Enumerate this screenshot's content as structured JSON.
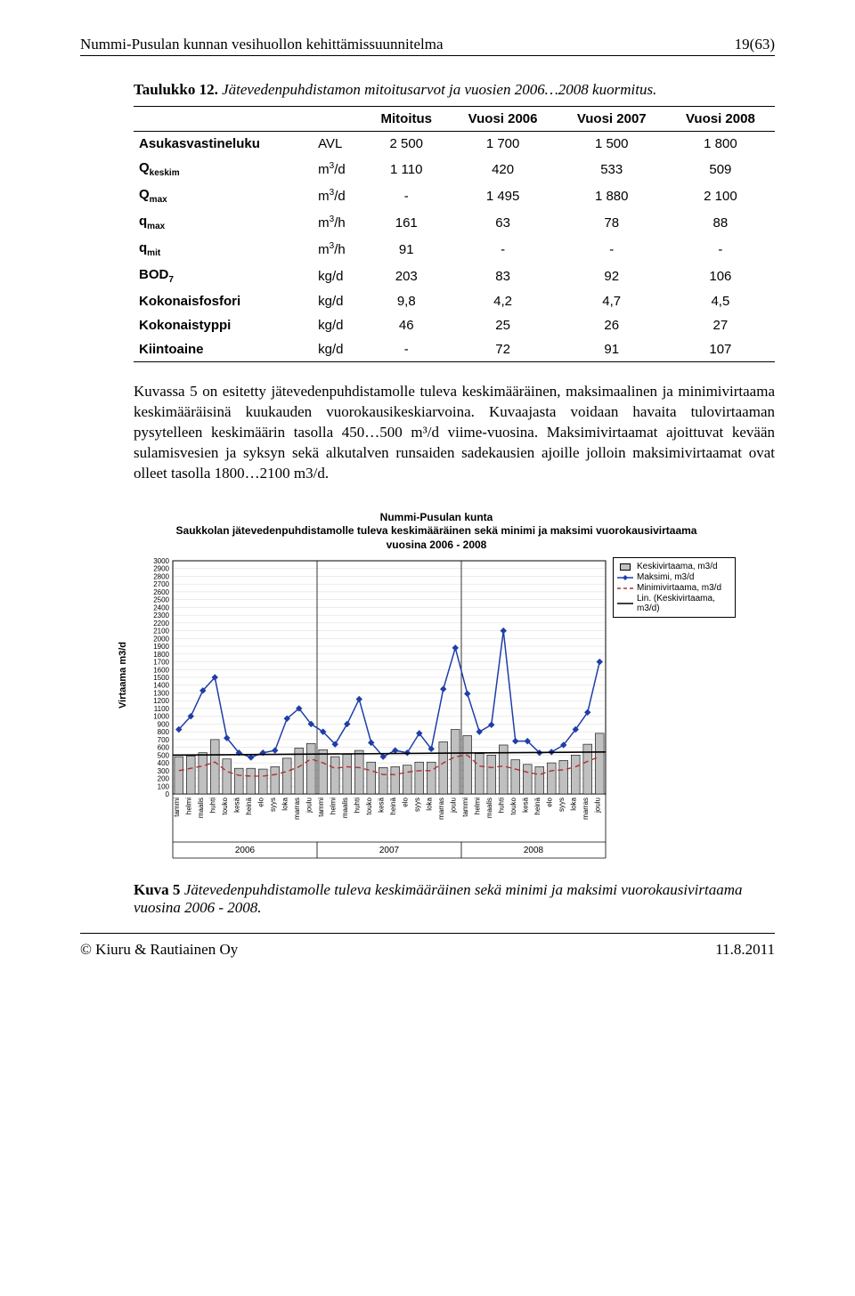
{
  "header": {
    "title": "Nummi-Pusulan kunnan vesihuollon kehittämissuunnitelma",
    "page_of": "19(63)"
  },
  "table_caption_prefix": "Taulukko 12.",
  "table_caption_rest": " Jätevedenpuhdistamon mitoitusarvot ja vuosien 2006…2008 kuormitus.",
  "table": {
    "columns": [
      "",
      "",
      "Mitoitus",
      "Vuosi 2006",
      "Vuosi 2007",
      "Vuosi 2008"
    ],
    "rows": [
      {
        "label": "Asukasvastineluku",
        "unit": "AVL",
        "vals": [
          "2 500",
          "1 700",
          "1 500",
          "1 800"
        ]
      },
      {
        "label_html": "Q<sub>keskim</sub>",
        "unit_html": "m<sup>3</sup>/d",
        "vals": [
          "1 110",
          "420",
          "533",
          "509"
        ]
      },
      {
        "label_html": "Q<sub>max</sub>",
        "unit_html": "m<sup>3</sup>/d",
        "vals": [
          "-",
          "1 495",
          "1 880",
          "2 100"
        ]
      },
      {
        "label_html": "q<sub>max</sub>",
        "unit_html": "m<sup>3</sup>/h",
        "vals": [
          "161",
          "63",
          "78",
          "88"
        ]
      },
      {
        "label_html": "q<sub>mit</sub>",
        "unit_html": "m<sup>3</sup>/h",
        "vals": [
          "91",
          "-",
          "-",
          "-"
        ]
      },
      {
        "label_html": "BOD<sub>7</sub>",
        "unit": "kg/d",
        "vals": [
          "203",
          "83",
          "92",
          "106"
        ]
      },
      {
        "label": "Kokonaisfosfori",
        "unit": "kg/d",
        "vals": [
          "9,8",
          "4,2",
          "4,7",
          "4,5"
        ]
      },
      {
        "label": "Kokonaistyppi",
        "unit": "kg/d",
        "vals": [
          "46",
          "25",
          "26",
          "27"
        ]
      },
      {
        "label": "Kiintoaine",
        "unit": "kg/d",
        "vals": [
          "-",
          "72",
          "91",
          "107"
        ]
      }
    ]
  },
  "body_paragraph": "Kuvassa 5 on esitetty jätevedenpuhdistamolle tuleva keskimääräinen, maksimaalinen ja minimivirtaama keskimääräisinä kuukauden vuorokausikeskiarvoina. Kuvaajasta voidaan havaita tulovirtaaman pysytelleen keskimäärin tasolla 450…500 m³/d viime-vuosina. Maksimivirtaamat ajoittuvat kevään sulamisvesien ja syksyn sekä alkutalven runsaiden sadekausien ajoille jolloin maksimivirtaamat ovat olleet tasolla 1800…2100 m3/d.",
  "chart": {
    "title_line1": "Nummi-Pusulan kunta",
    "title_line2": "Saukkolan jätevedenpuhdistamolle tuleva keskimääräinen sekä minimi ja maksimi vuorokausivirtaama",
    "title_line3": "vuosina 2006 - 2008",
    "ylabel": "Virtaama m3/d",
    "ylim": [
      0,
      3000
    ],
    "ytick_step": 100,
    "months": [
      "tammi",
      "helmi",
      "maalis",
      "huhti",
      "touko",
      "kesä",
      "heinä",
      "elo",
      "syys",
      "loka",
      "marras",
      "joulu"
    ],
    "years": [
      "2006",
      "2007",
      "2008"
    ],
    "series_keski": [
      480,
      490,
      530,
      700,
      450,
      330,
      330,
      320,
      350,
      460,
      590,
      650,
      570,
      480,
      510,
      560,
      410,
      340,
      350,
      370,
      410,
      410,
      670,
      830,
      750,
      520,
      500,
      630,
      440,
      380,
      350,
      400,
      430,
      500,
      640,
      780
    ],
    "series_max": [
      830,
      1000,
      1330,
      1500,
      720,
      530,
      470,
      530,
      560,
      970,
      1100,
      900,
      800,
      640,
      900,
      1220,
      660,
      480,
      560,
      530,
      780,
      580,
      1350,
      1880,
      1290,
      800,
      890,
      2100,
      680,
      680,
      530,
      540,
      630,
      830,
      1050,
      1700
    ],
    "series_min": [
      300,
      330,
      360,
      410,
      290,
      240,
      230,
      230,
      250,
      290,
      350,
      450,
      400,
      330,
      350,
      340,
      300,
      250,
      250,
      280,
      300,
      300,
      400,
      480,
      500,
      360,
      340,
      360,
      320,
      280,
      250,
      300,
      310,
      350,
      420,
      480
    ],
    "trend_start": 500,
    "trend_end": 540,
    "colors": {
      "bar_fill": "#c0c0c0",
      "bar_border": "#000000",
      "line_max": "#1f3ea8",
      "line_min": "#b03030",
      "line_trend": "#000000",
      "grid": "#d8d8d8",
      "axis": "#000000"
    },
    "legend": [
      {
        "label": "Keskivirtaama, m3/d",
        "type": "bar"
      },
      {
        "label": "Maksimi, m3/d",
        "type": "line-max"
      },
      {
        "label": "Minimivirtaama, m3/d",
        "type": "line-min"
      },
      {
        "label": "Lin. (Keskivirtaama, m3/d)",
        "type": "line-trend"
      }
    ]
  },
  "fig_caption_prefix": "Kuva 5",
  "fig_caption_rest": " Jätevedenpuhdistamolle tuleva keskimääräinen sekä minimi ja maksimi vuorokausivirtaama vuosina 2006 - 2008.",
  "footer": {
    "left": "© Kiuru & Rautiainen Oy",
    "right": "11.8.2011"
  }
}
